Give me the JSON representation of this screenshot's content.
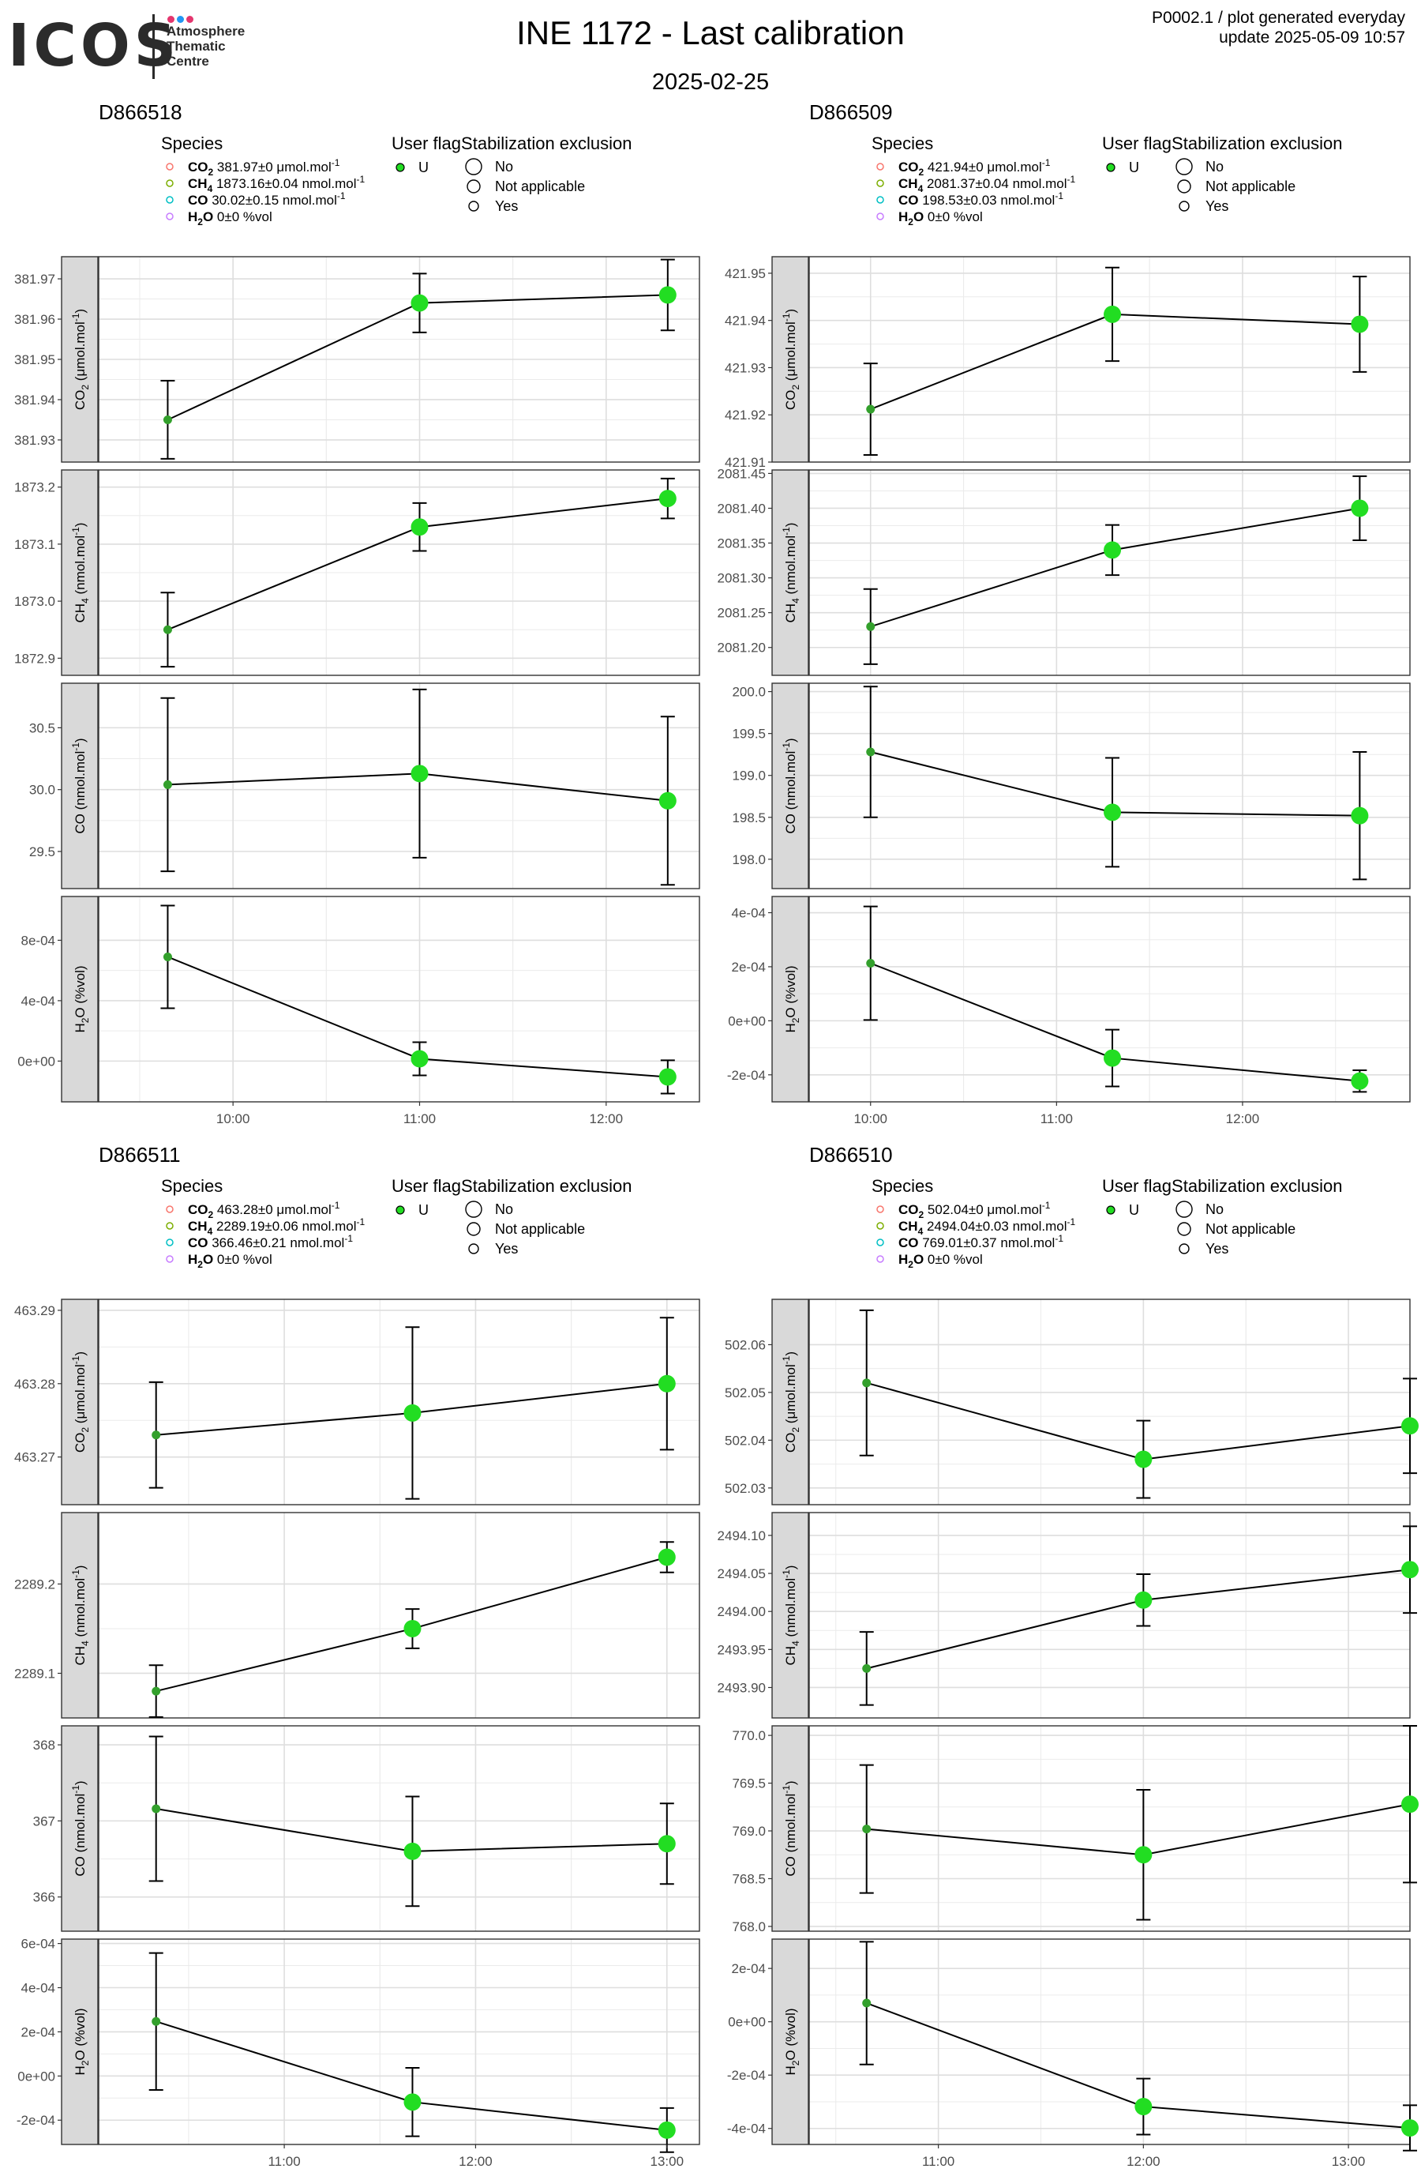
{
  "header": {
    "logo_text": "ICOS",
    "logo_sub": [
      "Atmosphere",
      "Thematic",
      "Centre"
    ],
    "title": "INE 1172 - Last calibration",
    "date": "2025-02-25",
    "corner_line1": "P0002.1 / plot generated everyday",
    "corner_line2": "update  2025-05-09 10:57",
    "dot_colors": [
      "#e4366e",
      "#2196f3",
      "#e4366e"
    ]
  },
  "legend": {
    "species_title": "Species",
    "user_flag_title": "User flag",
    "stab_title": "Stabilization exclusion",
    "user_flag_entry": "U",
    "stab_entries": [
      "No",
      "Not applicable",
      "Yes"
    ],
    "species_colors": [
      "#F8766D",
      "#7CAE00",
      "#00BFC4",
      "#C77CFF"
    ]
  },
  "colors": {
    "point": "#22dd22",
    "point_dark": "#33a02c",
    "strip": "#d9d9d9",
    "grid": "#ebebeb"
  },
  "chart_data": [
    {
      "type": "line",
      "title": "D866518",
      "x_ticks": [
        "10:00",
        "11:00",
        "12:00"
      ],
      "x_tick_hours": [
        10,
        11,
        12
      ],
      "x_range_hours": [
        9.28,
        12.5
      ],
      "x_hours": [
        9.65,
        11.0,
        12.33
      ],
      "species_legend": [
        {
          "name": "CO",
          "sub": "2",
          "value": "381.97±0 μmol.mol",
          "sup": "-1"
        },
        {
          "name": "CH",
          "sub": "4",
          "value": "1873.16±0.04 nmol.mol",
          "sup": "-1"
        },
        {
          "name": "CO",
          "sub": "",
          "value": "30.02±0.15 nmol.mol",
          "sup": "-1"
        },
        {
          "name": "H",
          "sub": "2",
          "name2": "O",
          "value": "0±0 %vol",
          "sup": ""
        }
      ],
      "facets": [
        {
          "strip": [
            "CO",
            "2",
            " (μmol.mol",
            "-1",
            ")"
          ],
          "ylim": [
            381.9245,
            381.9755
          ],
          "y_ticks": [
            381.93,
            381.94,
            381.95,
            381.96,
            381.97
          ],
          "y_labels": [
            "381.93",
            "381.94",
            "381.95",
            "381.96",
            "381.97"
          ],
          "values": [
            381.935,
            381.964,
            381.966
          ],
          "err": [
            0.0097,
            0.0073,
            0.0088
          ]
        },
        {
          "strip": [
            "CH",
            "4",
            " (nmol.mol",
            "-1",
            ")"
          ],
          "ylim": [
            1872.87,
            1873.23
          ],
          "y_ticks": [
            1872.9,
            1873.0,
            1873.1,
            1873.2
          ],
          "y_labels": [
            "1872.9",
            "1873.0",
            "1873.1",
            "1873.2"
          ],
          "values": [
            1872.95,
            1873.13,
            1873.18
          ],
          "err": [
            0.065,
            0.042,
            0.035
          ]
        },
        {
          "strip": [
            "CO",
            "",
            " (nmol.mol",
            "-1",
            ")"
          ],
          "ylim": [
            29.2,
            30.86
          ],
          "y_ticks": [
            29.5,
            30.0,
            30.5
          ],
          "y_labels": [
            "29.5",
            "30.0",
            "30.5"
          ],
          "values": [
            30.04,
            30.13,
            29.91
          ],
          "err": [
            0.7,
            0.68,
            0.68
          ]
        },
        {
          "strip": [
            "H",
            "2",
            "O (%vol)",
            "",
            ""
          ],
          "ylim": [
            -0.00027,
            0.00109
          ],
          "y_ticks": [
            0.0,
            0.0004,
            0.0008
          ],
          "y_labels": [
            "0e+00",
            "4e-04",
            "8e-04"
          ],
          "values": [
            0.00069,
            1.5e-05,
            -0.000105
          ],
          "err": [
            0.00034,
            0.00011,
            0.00011
          ]
        }
      ]
    },
    {
      "type": "line",
      "title": "D866509",
      "x_ticks": [
        "10:00",
        "11:00",
        "12:00"
      ],
      "x_tick_hours": [
        10,
        11,
        12
      ],
      "x_range_hours": [
        9.67,
        12.9
      ],
      "x_hours": [
        10.0,
        11.3,
        12.63
      ],
      "species_legend": [
        {
          "name": "CO",
          "sub": "2",
          "value": "421.94±0 μmol.mol",
          "sup": "-1"
        },
        {
          "name": "CH",
          "sub": "4",
          "value": "2081.37±0.04 nmol.mol",
          "sup": "-1"
        },
        {
          "name": "CO",
          "sub": "",
          "value": "198.53±0.03 nmol.mol",
          "sup": "-1"
        },
        {
          "name": "H",
          "sub": "2",
          "name2": "O",
          "value": "0±0 %vol",
          "sup": ""
        }
      ],
      "facets": [
        {
          "strip": [
            "CO",
            "2",
            " (μmol.mol",
            "-1",
            ")"
          ],
          "ylim": [
            421.91,
            421.9535
          ],
          "y_ticks": [
            421.91,
            421.92,
            421.93,
            421.94,
            421.95
          ],
          "y_labels": [
            "421.91",
            "421.92",
            "421.93",
            "421.94",
            "421.95"
          ],
          "values": [
            421.9212,
            421.9413,
            421.9392
          ],
          "err": [
            0.0097,
            0.0099,
            0.0101
          ]
        },
        {
          "strip": [
            "CH",
            "4",
            " (nmol.mol",
            "-1",
            ")"
          ],
          "ylim": [
            2081.16,
            2081.455
          ],
          "y_ticks": [
            2081.2,
            2081.25,
            2081.3,
            2081.35,
            2081.4,
            2081.45
          ],
          "y_labels": [
            "2081.20",
            "2081.25",
            "2081.30",
            "2081.35",
            "2081.40",
            "2081.45"
          ],
          "values": [
            2081.23,
            2081.34,
            2081.4
          ],
          "err": [
            0.054,
            0.036,
            0.046
          ]
        },
        {
          "strip": [
            "CO",
            "",
            " (nmol.mol",
            "-1",
            ")"
          ],
          "ylim": [
            197.65,
            200.1
          ],
          "y_ticks": [
            198.0,
            198.5,
            199.0,
            199.5,
            200.0
          ],
          "y_labels": [
            "198.0",
            "198.5",
            "199.0",
            "199.5",
            "200.0"
          ],
          "values": [
            199.28,
            198.56,
            198.52
          ],
          "err": [
            0.78,
            0.65,
            0.76
          ]
        },
        {
          "strip": [
            "H",
            "2",
            "O (%vol)",
            "",
            ""
          ],
          "ylim": [
            -0.0003,
            0.00046
          ],
          "y_ticks": [
            -0.0002,
            0.0,
            0.0002,
            0.0004
          ],
          "y_labels": [
            "-2e-04",
            "0e+00",
            "2e-04",
            "4e-04"
          ],
          "values": [
            0.000213,
            -0.000138,
            -0.000223
          ],
          "err": [
            0.00021,
            0.000105,
            4e-05
          ]
        }
      ]
    },
    {
      "type": "line",
      "title": "D866511",
      "x_ticks": [
        "11:00",
        "12:00",
        "13:00"
      ],
      "x_tick_hours": [
        11,
        12,
        13
      ],
      "x_range_hours": [
        10.03,
        13.17
      ],
      "x_hours": [
        10.33,
        11.67,
        13.0
      ],
      "species_legend": [
        {
          "name": "CO",
          "sub": "2",
          "value": "463.28±0 μmol.mol",
          "sup": "-1"
        },
        {
          "name": "CH",
          "sub": "4",
          "value": "2289.19±0.06 nmol.mol",
          "sup": "-1"
        },
        {
          "name": "CO",
          "sub": "",
          "value": "366.46±0.21 nmol.mol",
          "sup": "-1"
        },
        {
          "name": "H",
          "sub": "2",
          "name2": "O",
          "value": "0±0 %vol",
          "sup": ""
        }
      ],
      "facets": [
        {
          "strip": [
            "CO",
            "2",
            " (μmol.mol",
            "-1",
            ")"
          ],
          "ylim": [
            463.2635,
            463.2915
          ],
          "y_ticks": [
            463.27,
            463.28,
            463.29
          ],
          "y_labels": [
            "463.27",
            "463.28",
            "463.29"
          ],
          "values": [
            463.273,
            463.276,
            463.28
          ],
          "err": [
            0.0072,
            0.0117,
            0.009
          ]
        },
        {
          "strip": [
            "CH",
            "4",
            " (nmol.mol",
            "-1",
            ")"
          ],
          "ylim": [
            2289.05,
            2289.28
          ],
          "y_ticks": [
            2289.1,
            2289.2
          ],
          "y_labels": [
            "2289.1",
            "2289.2"
          ],
          "values": [
            2289.08,
            2289.15,
            2289.23
          ],
          "err": [
            0.029,
            0.022,
            0.017
          ]
        },
        {
          "strip": [
            "CO",
            "",
            " (nmol.mol",
            "-1",
            ")"
          ],
          "ylim": [
            365.55,
            368.25
          ],
          "y_ticks": [
            366,
            367,
            368
          ],
          "y_labels": [
            "366",
            "367",
            "368"
          ],
          "values": [
            367.16,
            366.6,
            366.7
          ],
          "err": [
            0.95,
            0.72,
            0.53
          ]
        },
        {
          "strip": [
            "H",
            "2",
            "O (%vol)",
            "",
            ""
          ],
          "ylim": [
            -0.00031,
            0.00062
          ],
          "y_ticks": [
            -0.0002,
            0.0,
            0.0002,
            0.0004,
            0.0006
          ],
          "y_labels": [
            "-2e-04",
            "0e+00",
            "2e-04",
            "4e-04",
            "6e-04"
          ],
          "values": [
            0.000247,
            -0.000118,
            -0.000245
          ],
          "err": [
            0.00031,
            0.000155,
            0.0001
          ]
        }
      ]
    },
    {
      "type": "line",
      "title": "D866510",
      "x_ticks": [
        "11:00",
        "12:00",
        "13:00"
      ],
      "x_tick_hours": [
        11,
        12,
        13
      ],
      "x_range_hours": [
        10.37,
        13.3
      ],
      "x_hours": [
        10.65,
        12.0,
        13.3
      ],
      "species_legend": [
        {
          "name": "CO",
          "sub": "2",
          "value": "502.04±0 μmol.mol",
          "sup": "-1"
        },
        {
          "name": "CH",
          "sub": "4",
          "value": "2494.04±0.03 nmol.mol",
          "sup": "-1"
        },
        {
          "name": "CO",
          "sub": "",
          "value": "769.01±0.37 nmol.mol",
          "sup": "-1"
        },
        {
          "name": "H",
          "sub": "2",
          "name2": "O",
          "value": "0±0 %vol",
          "sup": ""
        }
      ],
      "facets": [
        {
          "strip": [
            "CO",
            "2",
            " (μmol.mol",
            "-1",
            ")"
          ],
          "ylim": [
            502.0265,
            502.0695
          ],
          "y_ticks": [
            502.03,
            502.04,
            502.05,
            502.06
          ],
          "y_labels": [
            "502.03",
            "502.04",
            "502.05",
            "502.06"
          ],
          "values": [
            502.052,
            502.036,
            502.043
          ],
          "err": [
            0.0152,
            0.0081,
            0.0099
          ]
        },
        {
          "strip": [
            "CH",
            "4",
            " (nmol.mol",
            "-1",
            ")"
          ],
          "ylim": [
            2493.86,
            2494.13
          ],
          "y_ticks": [
            2493.9,
            2493.95,
            2494.0,
            2494.05,
            2494.1
          ],
          "y_labels": [
            "2493.90",
            "2493.95",
            "2494.00",
            "2494.05",
            "2494.10"
          ],
          "values": [
            2493.925,
            2494.015,
            2494.055
          ],
          "err": [
            0.048,
            0.034,
            0.057
          ]
        },
        {
          "strip": [
            "CO",
            "",
            " (nmol.mol",
            "-1",
            ")"
          ],
          "ylim": [
            767.95,
            770.1
          ],
          "y_ticks": [
            768.0,
            768.5,
            769.0,
            769.5,
            770.0
          ],
          "y_labels": [
            "768.0",
            "768.5",
            "769.0",
            "769.5",
            "770.0"
          ],
          "values": [
            769.02,
            768.75,
            769.28
          ],
          "err": [
            0.67,
            0.68,
            0.82
          ]
        },
        {
          "strip": [
            "H",
            "2",
            "O (%vol)",
            "",
            ""
          ],
          "ylim": [
            -0.00046,
            0.00031
          ],
          "y_ticks": [
            -0.0004,
            -0.0002,
            0.0,
            0.0002
          ],
          "y_labels": [
            "-4e-04",
            "-2e-04",
            "0e+00",
            "2e-04"
          ],
          "values": [
            7e-05,
            -0.000318,
            -0.000398
          ],
          "err": [
            0.00023,
            0.000105,
            8.5e-05
          ]
        }
      ]
    }
  ]
}
